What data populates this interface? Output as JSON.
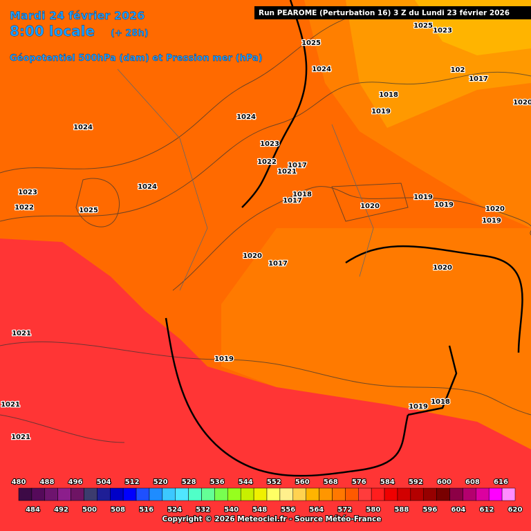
{
  "header": {
    "date": "Mardi 24 février 2026",
    "time": "8:00 locale",
    "lead": "(+ 28h)",
    "field": "Géopotentiel 500hPa (dam) et Pression mer (hPa)",
    "run": "Run PEAROME (Perturbation 16) 3 Z du Lundi 23 février 2026"
  },
  "isobar_labels": [
    1025,
    1025,
    1023,
    1024,
    102,
    1017,
    1018,
    1019,
    1020,
    1024,
    1024,
    1023,
    1022,
    1017,
    1021,
    1018,
    1017,
    1023,
    1022,
    1025,
    1024,
    1020,
    1019,
    1019,
    1020,
    1019,
    1020,
    1017,
    1020,
    1021,
    1019,
    1021,
    1021,
    1019,
    1018
  ],
  "scale": {
    "top": [
      480,
      488,
      496,
      504,
      512,
      520,
      528,
      536,
      544,
      552,
      560,
      568,
      576,
      584,
      592,
      600,
      608,
      616
    ],
    "bottom": [
      484,
      492,
      500,
      508,
      516,
      524,
      532,
      540,
      548,
      556,
      564,
      572,
      580,
      588,
      596,
      604,
      612,
      620
    ],
    "colors": [
      "#3d0a46",
      "#550a5a",
      "#6e146e",
      "#8c1e8c",
      "#6e1464",
      "#3c3c6e",
      "#1e1e96",
      "#0000c8",
      "#0000ff",
      "#1e50ff",
      "#1e8cff",
      "#3cc8ff",
      "#50e6ff",
      "#50ffc8",
      "#64ff96",
      "#78ff50",
      "#96ff1e",
      "#c8f000",
      "#f0f000",
      "#ffff64",
      "#fff08c",
      "#ffd250",
      "#ffb400",
      "#ff9600",
      "#ff7800",
      "#ff5a00",
      "#ff3c3c",
      "#ff1e1e",
      "#f00000",
      "#d20000",
      "#b40000",
      "#960000",
      "#780000",
      "#8c0046",
      "#b4006e",
      "#dc00a0",
      "#ff00ff",
      "#ff8cff"
    ]
  },
  "copyright": "Copyright © 2026 Meteociel.fr - Source Météo-France"
}
